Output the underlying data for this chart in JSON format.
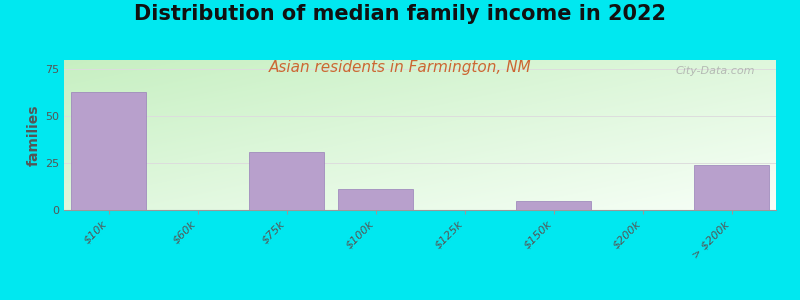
{
  "title": "Distribution of median family income in 2022",
  "subtitle": "Asian residents in Farmington, NM",
  "ylabel": "families",
  "categories": [
    "$10k",
    "$60k",
    "$75k",
    "$100k",
    "$125k",
    "$150k",
    "$200k",
    "> $200k"
  ],
  "values": [
    63,
    0,
    31,
    11,
    0,
    5,
    0,
    24
  ],
  "bar_color": "#b8a0cc",
  "bar_edge_color": "#9880b8",
  "background_outer": "#00e8f0",
  "bg_top_left": "#c8f0c0",
  "bg_top_right": "#f0faf8",
  "bg_bottom_left": "#c0eab8",
  "bg_bottom_right": "#e8f8f0",
  "grid_color": "#dddddd",
  "title_fontsize": 15,
  "subtitle_fontsize": 11,
  "subtitle_color": "#cc6633",
  "ylabel_fontsize": 10,
  "tick_fontsize": 8,
  "ylim": [
    0,
    80
  ],
  "yticks": [
    0,
    25,
    50,
    75
  ],
  "watermark": "City-Data.com"
}
